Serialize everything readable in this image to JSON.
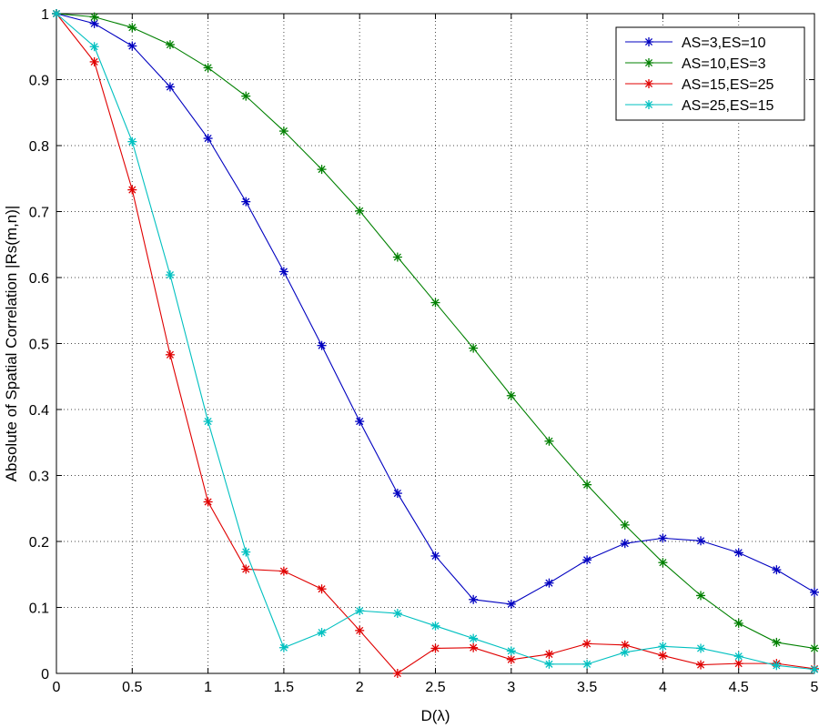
{
  "chart_data": {
    "type": "line",
    "title": "",
    "xlabel": "D(λ)",
    "ylabel": "Absolute of Spatial Correlation |Rs(m,n)|",
    "xlim": [
      0,
      5
    ],
    "ylim": [
      0,
      1
    ],
    "xticks": [
      0,
      0.5,
      1,
      1.5,
      2,
      2.5,
      3,
      3.5,
      4,
      4.5,
      5
    ],
    "xtick_labels": [
      "0",
      "0.5",
      "1",
      "1.5",
      "2",
      "2.5",
      "3",
      "3.5",
      "4",
      "4.5",
      "5"
    ],
    "yticks": [
      0,
      0.1,
      0.2,
      0.3,
      0.4,
      0.5,
      0.6,
      0.7,
      0.8,
      0.9,
      1
    ],
    "ytick_labels": [
      "0",
      "0.1",
      "0.2",
      "0.3",
      "0.4",
      "0.5",
      "0.6",
      "0.7",
      "0.8",
      "0.9",
      "1"
    ],
    "grid": true,
    "legend_position": "top-right",
    "marker": "asterisk",
    "x": [
      0,
      0.25,
      0.5,
      0.75,
      1,
      1.25,
      1.5,
      1.75,
      2,
      2.25,
      2.5,
      2.75,
      3,
      3.25,
      3.5,
      3.75,
      4,
      4.25,
      4.5,
      4.75,
      5
    ],
    "series": [
      {
        "name": "AS=3,ES=10",
        "color": "#0000c0",
        "values": [
          1.0,
          0.985,
          0.951,
          0.889,
          0.811,
          0.715,
          0.609,
          0.497,
          0.382,
          0.273,
          0.178,
          0.112,
          0.105,
          0.137,
          0.172,
          0.197,
          0.205,
          0.201,
          0.183,
          0.157,
          0.123
        ]
      },
      {
        "name": "AS=10,ES=3",
        "color": "#008000",
        "values": [
          1.0,
          0.995,
          0.979,
          0.953,
          0.918,
          0.875,
          0.822,
          0.764,
          0.701,
          0.631,
          0.562,
          0.493,
          0.421,
          0.352,
          0.286,
          0.225,
          0.168,
          0.118,
          0.076,
          0.047,
          0.038
        ]
      },
      {
        "name": "AS=15,ES=25",
        "color": "#e00000",
        "values": [
          1.0,
          0.927,
          0.733,
          0.483,
          0.26,
          0.158,
          0.155,
          0.128,
          0.065,
          0.0,
          0.038,
          0.039,
          0.021,
          0.029,
          0.045,
          0.043,
          0.027,
          0.013,
          0.015,
          0.015,
          0.007
        ]
      },
      {
        "name": "AS=25,ES=15",
        "color": "#00c0c0",
        "values": [
          1.0,
          0.95,
          0.806,
          0.604,
          0.382,
          0.184,
          0.039,
          0.062,
          0.095,
          0.091,
          0.072,
          0.053,
          0.034,
          0.014,
          0.014,
          0.032,
          0.041,
          0.038,
          0.026,
          0.012,
          0.006
        ]
      }
    ]
  }
}
